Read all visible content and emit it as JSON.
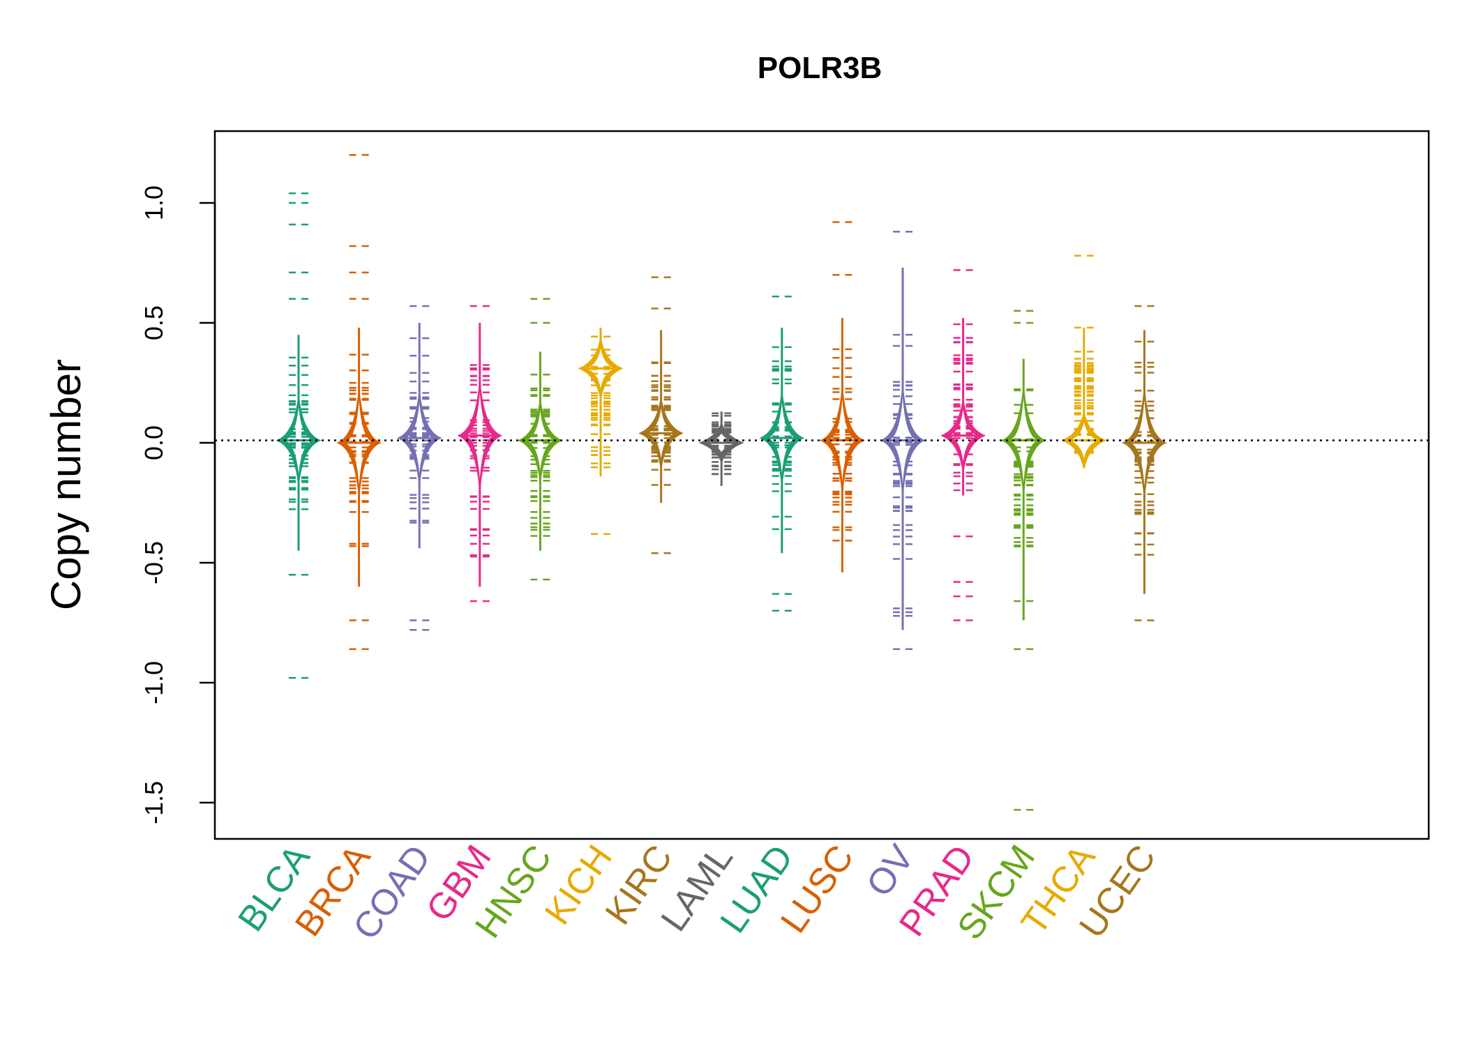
{
  "chart_data": {
    "type": "beanplot",
    "title": "POLR3B",
    "ylabel": "Copy number",
    "xlabel": "",
    "ylim": [
      -1.65,
      1.3
    ],
    "yticks": [
      1.0,
      0.5,
      0.0,
      -0.5,
      -1.0,
      -1.5
    ],
    "ytick_labels": [
      "1.0",
      "0.5",
      "0.0",
      "-0.5",
      "-1.0",
      "-1.5"
    ],
    "reference_line": 0.01,
    "categories": [
      "BLCA",
      "BRCA",
      "COAD",
      "GBM",
      "HNSC",
      "KICH",
      "KIRC",
      "LAML",
      "LUAD",
      "LUSC",
      "OV",
      "PRAD",
      "SKCM",
      "THCA",
      "UCEC"
    ],
    "colors": [
      "#1b9e77",
      "#d95f02",
      "#7570b3",
      "#e7298a",
      "#66a61e",
      "#e6ab02",
      "#a6761d",
      "#666666",
      "#1b9e77",
      "#d95f02",
      "#7570b3",
      "#e7298a",
      "#66a61e",
      "#e6ab02",
      "#a6761d"
    ],
    "series": [
      {
        "name": "BLCA",
        "min": -0.98,
        "max": 1.04,
        "q_low": -0.45,
        "q_high": 0.45,
        "peak": 0.01,
        "outliers": [
          1.04,
          1.0,
          0.91,
          0.71,
          0.6,
          -0.55,
          -0.98
        ]
      },
      {
        "name": "BRCA",
        "min": -0.86,
        "max": 1.2,
        "q_low": -0.6,
        "q_high": 0.48,
        "peak": 0.0,
        "outliers": [
          1.2,
          0.82,
          0.71,
          0.6,
          -0.74,
          -0.86
        ]
      },
      {
        "name": "COAD",
        "min": -0.78,
        "max": 0.57,
        "q_low": -0.44,
        "q_high": 0.5,
        "peak": 0.02,
        "outliers": [
          0.57,
          -0.74,
          -0.78
        ]
      },
      {
        "name": "GBM",
        "min": -0.66,
        "max": 0.57,
        "q_low": -0.6,
        "q_high": 0.5,
        "peak": 0.03,
        "outliers": [
          0.57,
          -0.66
        ]
      },
      {
        "name": "HNSC",
        "min": -0.57,
        "max": 0.6,
        "q_low": -0.45,
        "q_high": 0.38,
        "peak": 0.01,
        "outliers": [
          0.6,
          0.5,
          -0.57
        ]
      },
      {
        "name": "KICH",
        "min": -0.4,
        "max": 0.5,
        "q_low": -0.14,
        "q_high": 0.48,
        "peak": 0.31,
        "outliers": [
          -0.38
        ]
      },
      {
        "name": "KIRC",
        "min": -0.46,
        "max": 0.69,
        "q_low": -0.25,
        "q_high": 0.47,
        "peak": 0.04,
        "outliers": [
          0.69,
          0.56,
          -0.46
        ]
      },
      {
        "name": "LAML",
        "min": -0.22,
        "max": 0.14,
        "q_low": -0.18,
        "q_high": 0.13,
        "peak": 0.0,
        "outliers": []
      },
      {
        "name": "LUAD",
        "min": -0.7,
        "max": 0.61,
        "q_low": -0.46,
        "q_high": 0.48,
        "peak": 0.02,
        "outliers": [
          0.61,
          -0.63,
          -0.7
        ]
      },
      {
        "name": "LUSC",
        "min": -0.54,
        "max": 0.92,
        "q_low": -0.54,
        "q_high": 0.52,
        "peak": 0.01,
        "outliers": [
          0.92,
          0.7
        ]
      },
      {
        "name": "OV",
        "min": -0.86,
        "max": 0.88,
        "q_low": -0.78,
        "q_high": 0.73,
        "peak": 0.01,
        "outliers": [
          0.88,
          -0.86
        ]
      },
      {
        "name": "PRAD",
        "min": -0.74,
        "max": 0.72,
        "q_low": -0.22,
        "q_high": 0.52,
        "peak": 0.03,
        "outliers": [
          0.72,
          -0.39,
          -0.58,
          -0.64,
          -0.74
        ]
      },
      {
        "name": "SKCM",
        "min": -1.53,
        "max": 0.55,
        "q_low": -0.74,
        "q_high": 0.35,
        "peak": 0.01,
        "outliers": [
          0.55,
          0.5,
          -0.86,
          -1.53
        ]
      },
      {
        "name": "THCA",
        "min": -0.1,
        "max": 0.78,
        "q_low": -0.1,
        "q_high": 0.48,
        "peak": 0.01,
        "outliers": [
          0.78,
          0.48,
          0.38,
          0.3
        ]
      },
      {
        "name": "UCEC",
        "min": -0.74,
        "max": 0.57,
        "q_low": -0.63,
        "q_high": 0.47,
        "peak": 0.0,
        "outliers": [
          0.57,
          -0.74
        ]
      }
    ]
  }
}
